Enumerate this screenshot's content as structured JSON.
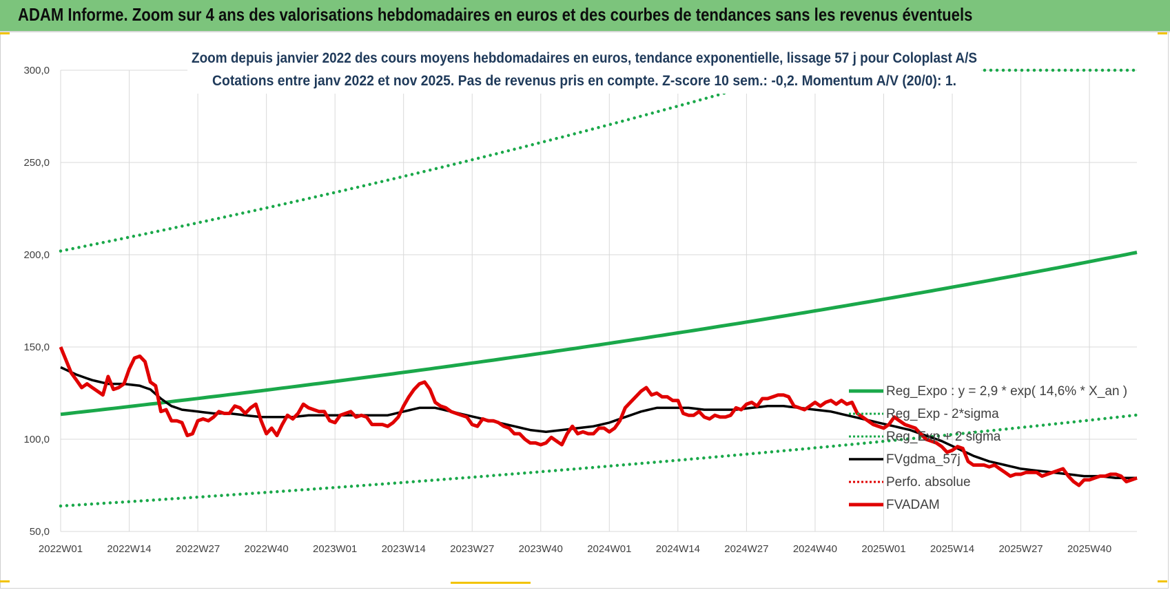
{
  "header": {
    "title": "ADAM Informe. Zoom sur 4 ans des valorisations hebdomadaires en euros et des courbes de tendances sans les revenus éventuels"
  },
  "chart_data": {
    "type": "line",
    "title_line1": "Zoom depuis janvier 2022 des cours moyens hebdomadaires en euros, tendance exponentielle, lissage 57 j pour Coloplast A/S",
    "title_line2": "Cotations entre janv 2022 et nov 2025. Pas de revenus pris en compte. Z-score 10 sem.: -0,2. Momentum A/V (20/0): 1.",
    "ylim": [
      50,
      300
    ],
    "y_ticks": [
      "50,0",
      "100,0",
      "150,0",
      "200,0",
      "250,0",
      "300,0"
    ],
    "y_tick_values": [
      50,
      100,
      150,
      200,
      250,
      300
    ],
    "x_ticks": [
      "2022W01",
      "2022W14",
      "2022W27",
      "2022W40",
      "2023W01",
      "2023W14",
      "2023W27",
      "2023W40",
      "2024W01",
      "2024W14",
      "2024W27",
      "2024W40",
      "2025W01",
      "2025W14",
      "2025W27",
      "2025W40"
    ],
    "x_tick_index": [
      0,
      13,
      26,
      39,
      52,
      65,
      78,
      91,
      104,
      117,
      130,
      143,
      156,
      169,
      182,
      195
    ],
    "n_weeks": 205,
    "trend": {
      "a": 113.5,
      "rate": 0.146
    },
    "upper_band": {
      "start": 202,
      "rate": 0.146
    },
    "lower_band": {
      "start": 63.8,
      "rate": 0.146
    },
    "fvadam_keypoints": [
      [
        0,
        150
      ],
      [
        2,
        136
      ],
      [
        4,
        128
      ],
      [
        5,
        130
      ],
      [
        7,
        126
      ],
      [
        8,
        124
      ],
      [
        9,
        134
      ],
      [
        10,
        127
      ],
      [
        11,
        128
      ],
      [
        12,
        130
      ],
      [
        13,
        138
      ],
      [
        14,
        144
      ],
      [
        15,
        145
      ],
      [
        16,
        142
      ],
      [
        17,
        131
      ],
      [
        18,
        129
      ],
      [
        19,
        115
      ],
      [
        20,
        116
      ],
      [
        21,
        110
      ],
      [
        22,
        110
      ],
      [
        23,
        109
      ],
      [
        24,
        102
      ],
      [
        25,
        103
      ],
      [
        26,
        110
      ],
      [
        27,
        111
      ],
      [
        28,
        110
      ],
      [
        29,
        112
      ],
      [
        30,
        115
      ],
      [
        31,
        114
      ],
      [
        32,
        114
      ],
      [
        33,
        118
      ],
      [
        34,
        117
      ],
      [
        35,
        114
      ],
      [
        36,
        117
      ],
      [
        37,
        119
      ],
      [
        38,
        110
      ],
      [
        39,
        103
      ],
      [
        40,
        106
      ],
      [
        41,
        102
      ],
      [
        42,
        108
      ],
      [
        43,
        113
      ],
      [
        44,
        111
      ],
      [
        45,
        114
      ],
      [
        46,
        119
      ],
      [
        47,
        117
      ],
      [
        48,
        116
      ],
      [
        49,
        115
      ],
      [
        50,
        115
      ],
      [
        51,
        110
      ],
      [
        52,
        109
      ],
      [
        53,
        113
      ],
      [
        54,
        114
      ],
      [
        55,
        115
      ],
      [
        56,
        112
      ],
      [
        57,
        113
      ],
      [
        58,
        112
      ],
      [
        59,
        108
      ],
      [
        60,
        108
      ],
      [
        61,
        108
      ],
      [
        62,
        107
      ],
      [
        63,
        109
      ],
      [
        64,
        112
      ],
      [
        65,
        118
      ],
      [
        66,
        123
      ],
      [
        67,
        127
      ],
      [
        68,
        130
      ],
      [
        69,
        131
      ],
      [
        70,
        127
      ],
      [
        71,
        120
      ],
      [
        72,
        118
      ],
      [
        73,
        117
      ],
      [
        74,
        115
      ],
      [
        75,
        114
      ],
      [
        76,
        113
      ],
      [
        77,
        112
      ],
      [
        78,
        108
      ],
      [
        79,
        107
      ],
      [
        80,
        111
      ],
      [
        81,
        110
      ],
      [
        82,
        110
      ],
      [
        83,
        109
      ],
      [
        84,
        107
      ],
      [
        85,
        106
      ],
      [
        86,
        103
      ],
      [
        87,
        103
      ],
      [
        88,
        100
      ],
      [
        89,
        98
      ],
      [
        90,
        98
      ],
      [
        91,
        97
      ],
      [
        92,
        98
      ],
      [
        93,
        101
      ],
      [
        94,
        99
      ],
      [
        95,
        97
      ],
      [
        96,
        103
      ],
      [
        97,
        107
      ],
      [
        98,
        103
      ],
      [
        99,
        104
      ],
      [
        100,
        103
      ],
      [
        101,
        103
      ],
      [
        102,
        106
      ],
      [
        103,
        106
      ],
      [
        104,
        104
      ],
      [
        105,
        106
      ],
      [
        106,
        110
      ],
      [
        107,
        117
      ],
      [
        108,
        120
      ],
      [
        109,
        123
      ],
      [
        110,
        126
      ],
      [
        111,
        128
      ],
      [
        112,
        124
      ],
      [
        113,
        125
      ],
      [
        114,
        123
      ],
      [
        115,
        123
      ],
      [
        116,
        121
      ],
      [
        117,
        121
      ],
      [
        118,
        114
      ],
      [
        119,
        113
      ],
      [
        120,
        113
      ],
      [
        121,
        115
      ],
      [
        122,
        112
      ],
      [
        123,
        111
      ],
      [
        124,
        113
      ],
      [
        125,
        112
      ],
      [
        126,
        112
      ],
      [
        127,
        113
      ],
      [
        128,
        117
      ],
      [
        129,
        116
      ],
      [
        130,
        119
      ],
      [
        131,
        120
      ],
      [
        132,
        118
      ],
      [
        133,
        122
      ],
      [
        134,
        122
      ],
      [
        135,
        123
      ],
      [
        136,
        124
      ],
      [
        137,
        124
      ],
      [
        138,
        123
      ],
      [
        139,
        118
      ],
      [
        140,
        117
      ],
      [
        141,
        116
      ],
      [
        142,
        118
      ],
      [
        143,
        120
      ],
      [
        144,
        118
      ],
      [
        145,
        120
      ],
      [
        146,
        121
      ],
      [
        147,
        119
      ],
      [
        148,
        121
      ],
      [
        149,
        119
      ],
      [
        150,
        120
      ],
      [
        151,
        114
      ],
      [
        152,
        112
      ],
      [
        153,
        110
      ],
      [
        154,
        108
      ],
      [
        155,
        107
      ],
      [
        156,
        106
      ],
      [
        157,
        108
      ],
      [
        158,
        112
      ],
      [
        159,
        110
      ],
      [
        160,
        108
      ],
      [
        161,
        107
      ],
      [
        162,
        106
      ],
      [
        163,
        103
      ],
      [
        164,
        100
      ],
      [
        165,
        99
      ],
      [
        166,
        98
      ],
      [
        167,
        96
      ],
      [
        168,
        93
      ],
      [
        169,
        94
      ],
      [
        170,
        96
      ],
      [
        171,
        95
      ],
      [
        172,
        88
      ],
      [
        173,
        86
      ],
      [
        174,
        86
      ],
      [
        175,
        86
      ],
      [
        176,
        85
      ],
      [
        177,
        86
      ],
      [
        178,
        84
      ],
      [
        179,
        82
      ],
      [
        180,
        80
      ],
      [
        181,
        81
      ],
      [
        182,
        81
      ],
      [
        183,
        82
      ],
      [
        184,
        82
      ],
      [
        185,
        82
      ],
      [
        186,
        80
      ],
      [
        187,
        81
      ],
      [
        188,
        82
      ],
      [
        189,
        83
      ],
      [
        190,
        84
      ],
      [
        191,
        80
      ],
      [
        192,
        77
      ],
      [
        193,
        75
      ],
      [
        194,
        78
      ],
      [
        195,
        78
      ],
      [
        196,
        79
      ],
      [
        197,
        80
      ],
      [
        198,
        80
      ],
      [
        199,
        81
      ],
      [
        200,
        81
      ],
      [
        201,
        80
      ],
      [
        202,
        77
      ],
      [
        203,
        78
      ],
      [
        204,
        79
      ]
    ],
    "fvgdma_keypoints": [
      [
        0,
        139
      ],
      [
        3,
        135
      ],
      [
        6,
        132
      ],
      [
        9,
        130
      ],
      [
        12,
        130
      ],
      [
        15,
        129
      ],
      [
        17,
        127
      ],
      [
        19,
        122
      ],
      [
        21,
        118
      ],
      [
        23,
        116
      ],
      [
        26,
        115
      ],
      [
        29,
        114
      ],
      [
        32,
        114
      ],
      [
        35,
        113
      ],
      [
        38,
        112
      ],
      [
        41,
        112
      ],
      [
        44,
        112
      ],
      [
        47,
        113
      ],
      [
        52,
        113
      ],
      [
        57,
        113
      ],
      [
        62,
        113
      ],
      [
        65,
        115
      ],
      [
        68,
        117
      ],
      [
        71,
        117
      ],
      [
        74,
        115
      ],
      [
        77,
        113
      ],
      [
        80,
        111
      ],
      [
        83,
        109
      ],
      [
        86,
        107
      ],
      [
        89,
        105
      ],
      [
        92,
        104
      ],
      [
        95,
        105
      ],
      [
        98,
        106
      ],
      [
        101,
        107
      ],
      [
        104,
        109
      ],
      [
        107,
        112
      ],
      [
        110,
        115
      ],
      [
        113,
        117
      ],
      [
        116,
        117
      ],
      [
        119,
        117
      ],
      [
        122,
        116
      ],
      [
        125,
        116
      ],
      [
        128,
        116
      ],
      [
        131,
        117
      ],
      [
        134,
        118
      ],
      [
        137,
        118
      ],
      [
        140,
        117
      ],
      [
        143,
        116
      ],
      [
        146,
        115
      ],
      [
        149,
        113
      ],
      [
        152,
        111
      ],
      [
        155,
        109
      ],
      [
        158,
        107
      ],
      [
        161,
        105
      ],
      [
        164,
        102
      ],
      [
        167,
        99
      ],
      [
        170,
        95
      ],
      [
        173,
        91
      ],
      [
        176,
        88
      ],
      [
        179,
        86
      ],
      [
        182,
        84
      ],
      [
        185,
        83
      ],
      [
        188,
        82
      ],
      [
        191,
        81
      ],
      [
        194,
        80
      ],
      [
        197,
        80
      ],
      [
        200,
        79
      ],
      [
        204,
        79
      ]
    ],
    "legend": [
      {
        "label": "Reg_Expo : y = 2,9 * exp( 14,6% *  X_an )",
        "color": "#1aa84a",
        "style": "solid-thick"
      },
      {
        "label": "Reg_Exp - 2*sigma",
        "color": "#1aa84a",
        "style": "dotted"
      },
      {
        "label": "Reg_Exp + 2 sigma",
        "color": "#1aa84a",
        "style": "dotted"
      },
      {
        "label": "FVgdma_57j",
        "color": "#000000",
        "style": "solid"
      },
      {
        "label": "Perfo. absolue",
        "color": "#e00000",
        "style": "dotted"
      },
      {
        "label": "FVADAM",
        "color": "#e00000",
        "style": "solid-thick"
      }
    ],
    "colors": {
      "trend": "#1aa84a",
      "band": "#1aa84a",
      "fvgdma": "#000000",
      "fvadam": "#e00000",
      "grid": "#d9d9d9",
      "header": "#7cc47c"
    }
  }
}
